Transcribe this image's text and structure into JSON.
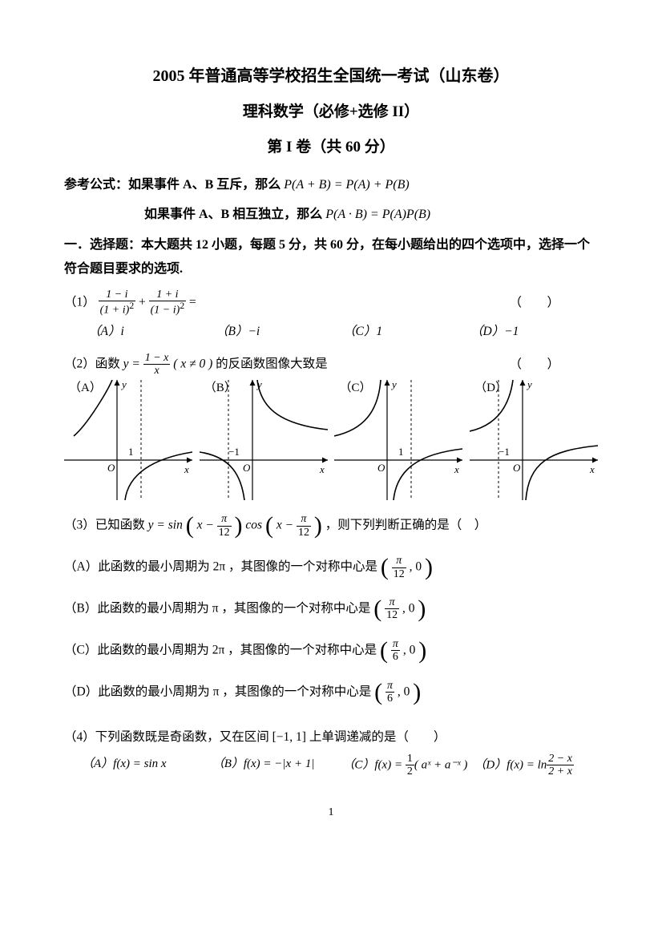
{
  "page_number": "1",
  "header": {
    "line1": "2005 年普通高等学校招生全国统一考试（山东卷）",
    "line2": "理科数学（必修+选修 II）",
    "line3": "第 I 卷（共 60 分）"
  },
  "formulas": {
    "prefix": "参考公式：",
    "f1_text": "如果事件 A、B 互斥，那么 ",
    "f1_math": "P(A + B) = P(A) + P(B)",
    "f2_text": "如果事件 A、B 相互独立，那么 ",
    "f2_math": "P(A · B) = P(A)P(B)"
  },
  "section1": "一．选择题：本大题共 12 小题，每题 5 分，共 60 分，在每小题给出的四个选项中，选择一个符合题目要求的选项.",
  "blank_paren": "（　）",
  "q1": {
    "label": "（1）",
    "eq_suffix": "=",
    "frac1_num": "1 − i",
    "frac1_den_base": "(1 + i)",
    "frac2_num": "1 + i",
    "frac2_den_base": "(1 − i)",
    "den_exp": "2",
    "opts": {
      "A": "（A）i",
      "B": "（B）−i",
      "C": "（C）1",
      "D": "（D）−1"
    }
  },
  "q2": {
    "label": "（2）函数 ",
    "func_lhs": "y =",
    "frac_num": "1 − x",
    "frac_den": "x",
    "cond": "( x ≠ 0 )",
    "tail": " 的反函数图像大致是",
    "graph_labels": {
      "A": "（A）",
      "B": "（B）",
      "C": "（C）",
      "D": "（D）"
    },
    "graphs": {
      "colors": {
        "axis": "#000000",
        "curve": "#000000",
        "dash": "#000000",
        "bg": "#ffffff"
      },
      "axis_width": 1.2,
      "curve_width": 1.6,
      "dash_pattern": "3,3",
      "width": 160,
      "height": 150,
      "data": [
        {
          "asymptote_x": 1,
          "tick_label": "1",
          "tick_side": "right",
          "curves": [
            "M 12 70 C 30 55, 55 12, 60 0",
            "M 76 150 C 80 118, 110 98, 160 90"
          ]
        },
        {
          "asymptote_x": -1,
          "tick_label": "−1",
          "tick_side": "left",
          "curves": [
            "M 0 90 C 40 96, 52 120, 56 150",
            "M 72 0 C 76 32, 96 55, 160 62"
          ]
        },
        {
          "asymptote_x": 1,
          "tick_label": "1",
          "tick_side": "right",
          "curves": [
            "M 0 70 C 36 62, 55 40, 58 0",
            "M 74 150 C 78 110, 108 92, 160 86"
          ]
        },
        {
          "asymptote_x": -1,
          "tick_label": "−1",
          "tick_side": "left",
          "curves": [
            "M 0 64 C 36 56, 50 30, 54 0",
            "M 70 150 C 74 104, 98 88, 160 82"
          ]
        }
      ]
    }
  },
  "q3": {
    "label": "（3）已知函数 ",
    "lhs": "y = sin",
    "arg_x": "x −",
    "frac_pi12_n": "π",
    "frac_pi12_d": "12",
    "mid": "cos",
    "tail": "，则下列判断正确的是（　）",
    "opts": {
      "A_pre": "（A）此函数的最小周期为 2π ，其图像的一个对称中心是",
      "A_cn": "π",
      "A_cd": "12",
      "A_y": ", 0",
      "B_pre": "（B）此函数的最小周期为 π ，其图像的一个对称中心是",
      "B_cn": "π",
      "B_cd": "12",
      "B_y": ", 0",
      "C_pre": "（C）此函数的最小周期为 2π ，其图像的一个对称中心是",
      "C_cn": "π",
      "C_cd": "6",
      "C_y": ", 0",
      "D_pre": "（D）此函数的最小周期为 π ，其图像的一个对称中心是",
      "D_cn": "π",
      "D_cd": "6",
      "D_y": ", 0"
    }
  },
  "q4": {
    "label": "（4）下列函数既是奇函数，又在区间 [−1, 1] 上单调递减的是（　　）",
    "opts": {
      "A": "（A）f(x) = sin x",
      "B": "（B）f(x) = −|x + 1|",
      "C_pre": "（C）f(x) = ",
      "C_frac_n": "1",
      "C_frac_d": "2",
      "C_post": "( aˣ + a⁻ˣ )",
      "D_pre": "（D）f(x) = ln",
      "D_frac_n": "2 − x",
      "D_frac_d": "2 + x"
    }
  }
}
